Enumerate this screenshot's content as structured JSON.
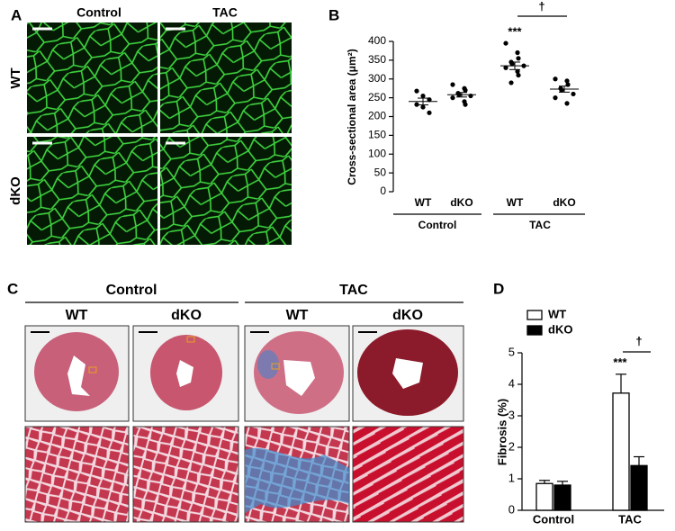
{
  "panel_a": {
    "label": "A",
    "columns": [
      "Control",
      "TAC"
    ],
    "rows": [
      "WT",
      "dKO"
    ]
  },
  "panel_c": {
    "label": "C",
    "groups": [
      "Control",
      "TAC"
    ],
    "columns": [
      "WT",
      "dKO",
      "WT",
      "dKO"
    ]
  },
  "chart_data": [
    {
      "panel_label": "B",
      "type": "dot",
      "ylabel": "Cross-sectional area (μm²)",
      "categories": [
        "WT",
        "dKO",
        "WT",
        "dKO"
      ],
      "group_labels": [
        "Control",
        "TAC"
      ],
      "points": [
        [
          268,
          255,
          245,
          232,
          225,
          210
        ],
        [
          285,
          275,
          270,
          262,
          258,
          255,
          250,
          240,
          232
        ],
        [
          395,
          370,
          355,
          345,
          340,
          335,
          330,
          320,
          310,
          290
        ],
        [
          300,
          295,
          285,
          275,
          270,
          260,
          250,
          235
        ]
      ],
      "means": [
        240,
        258,
        335,
        273
      ],
      "sems": [
        9,
        6,
        10,
        8
      ],
      "color": "#000000",
      "ylim": [
        0,
        400
      ],
      "yticks": [
        0,
        50,
        100,
        150,
        200,
        250,
        300,
        350,
        400
      ],
      "annotations": [
        "***",
        "†"
      ]
    },
    {
      "panel_label": "D",
      "type": "bar",
      "ylabel": "Fibrosis (%)",
      "categories": [
        "Control",
        "TAC"
      ],
      "series": [
        {
          "name": "WT",
          "color": "#ffffff",
          "values": [
            0.85,
            3.72
          ],
          "errors": [
            0.1,
            0.6
          ]
        },
        {
          "name": "dKO",
          "color": "#000000",
          "values": [
            0.8,
            1.42
          ],
          "errors": [
            0.12,
            0.28
          ]
        }
      ],
      "ylim": [
        0,
        5
      ],
      "yticks": [
        0,
        1,
        2,
        3,
        4,
        5
      ],
      "legend": "upper left",
      "annotations": [
        "***",
        "†"
      ]
    }
  ]
}
